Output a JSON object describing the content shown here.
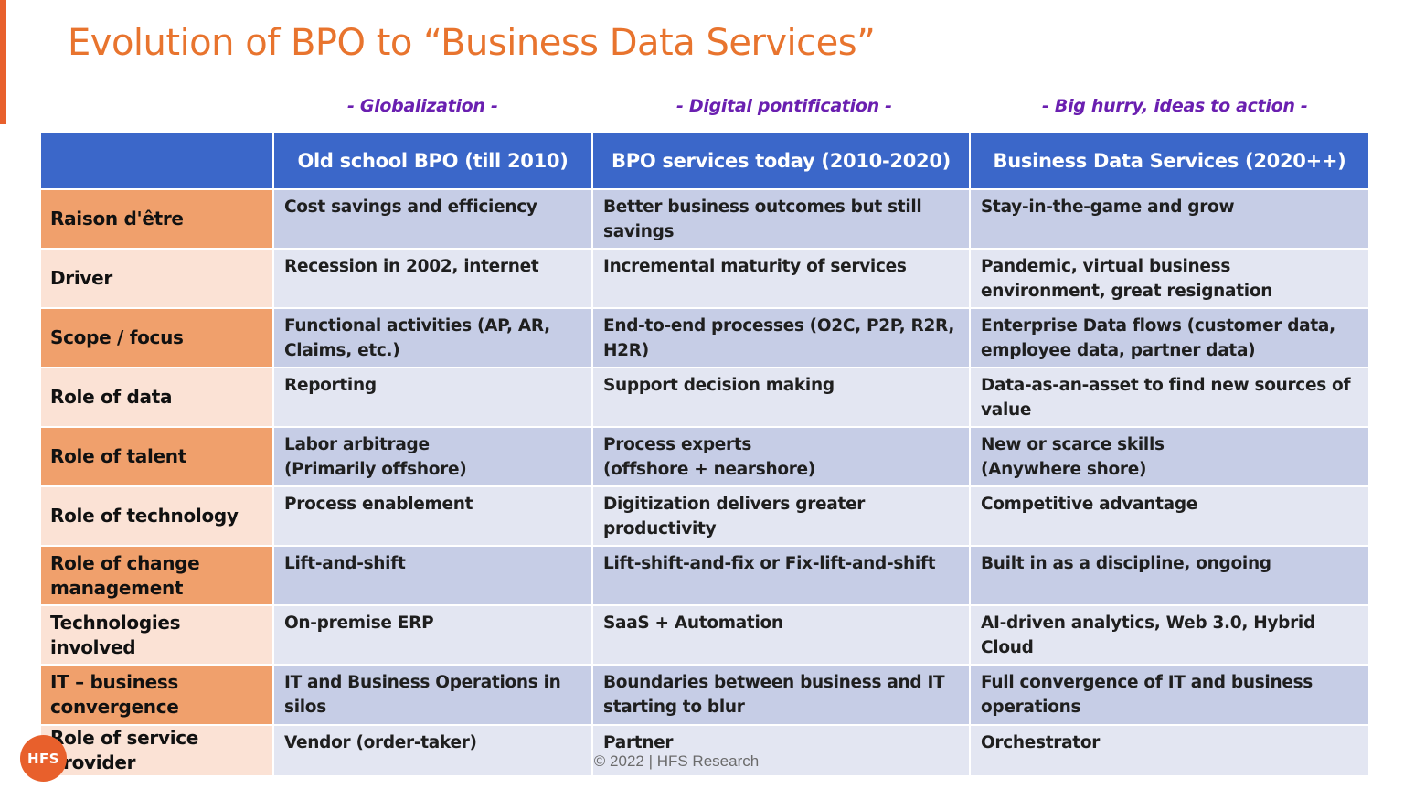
{
  "theme": {
    "accent": "#e8602c",
    "title_color": "#e8742e",
    "era_color": "#6a1fb0",
    "header_bg": "#3b67c9",
    "label_dark": "#f0a06c",
    "label_light": "#fbe2d5",
    "cell_dark": "#c6cde6",
    "cell_light": "#e3e6f2"
  },
  "slide": {
    "title": "Evolution of BPO to “Business Data Services”",
    "eras": [
      "- Globalization -",
      "- Digital pontification -",
      "- Big hurry, ideas to action -"
    ],
    "footer": "© 2022 | HFS Research",
    "logo_text": "HFS"
  },
  "table": {
    "headers": [
      "",
      "Old school BPO (till 2010)",
      "BPO services today (2010-2020)",
      "Business Data Services (2020++)"
    ],
    "rows": [
      {
        "label": "Raison d'être",
        "cells": [
          "Cost savings and efficiency",
          "Better business outcomes but still savings",
          "Stay-in-the-game and grow"
        ]
      },
      {
        "label": "Driver",
        "cells": [
          "Recession in 2002, internet",
          "Incremental maturity of services",
          "Pandemic, virtual business environment, great resignation"
        ]
      },
      {
        "label": "Scope / focus",
        "cells": [
          "Functional activities (AP, AR, Claims, etc.)",
          "End-to-end processes (O2C, P2P, R2R, H2R)",
          "Enterprise Data flows (customer data, employee data, partner data)"
        ]
      },
      {
        "label": "Role of data",
        "cells": [
          "Reporting",
          "Support decision making",
          "Data-as-an-asset to find new sources of value"
        ]
      },
      {
        "label": "Role of talent",
        "cells": [
          "Labor arbitrage\n(Primarily offshore)",
          "Process experts\n(offshore + nearshore)",
          "New or scarce skills\n(Anywhere shore)"
        ]
      },
      {
        "label": "Role of technology",
        "cells": [
          "Process enablement",
          "Digitization delivers greater productivity",
          "Competitive advantage"
        ]
      },
      {
        "label": "Role of change management",
        "cells": [
          "Lift-and-shift",
          "Lift-shift-and-fix or Fix-lift-and-shift",
          "Built in as a discipline, ongoing"
        ]
      },
      {
        "label": "Technologies involved",
        "cells": [
          "On-premise ERP",
          "SaaS + Automation",
          "AI-driven analytics, Web 3.0, Hybrid Cloud"
        ]
      },
      {
        "label": "IT – business convergence",
        "cells": [
          "IT and Business Operations in silos",
          "Boundaries between business and IT starting to blur",
          "Full convergence of IT and business operations"
        ]
      },
      {
        "label": "Role of service provider",
        "cells": [
          "Vendor (order-taker)",
          "Partner",
          "Orchestrator"
        ]
      }
    ]
  }
}
